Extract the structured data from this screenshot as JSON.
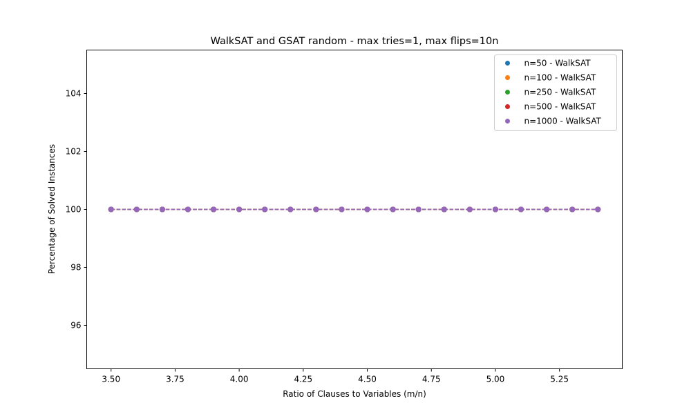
{
  "chart_data": {
    "type": "scatter",
    "title": "WalkSAT and GSAT random - max tries=1, max flips=10n",
    "xlabel": "Ratio of Clauses to Variables (m/n)",
    "ylabel": "Percentage of Solved Instances",
    "xlim": [
      3.405,
      5.495
    ],
    "ylim": [
      94.5,
      105.5
    ],
    "x_ticks": [
      "3.50",
      "3.75",
      "4.00",
      "4.25",
      "4.50",
      "4.75",
      "5.00",
      "5.25"
    ],
    "y_ticks": [
      "96",
      "98",
      "100",
      "102",
      "104"
    ],
    "x": [
      3.5,
      3.6,
      3.7,
      3.8,
      3.9,
      4.0,
      4.1,
      4.2,
      4.3,
      4.4,
      4.5,
      4.6,
      4.7,
      4.8,
      4.9,
      5.0,
      5.1,
      5.2,
      5.3,
      5.4
    ],
    "line_style": "dashed",
    "legend_position": "top-right",
    "grid": false,
    "series": [
      {
        "name": "n=50 - WalkSAT",
        "color": "#1f77b4",
        "values": [
          100,
          100,
          100,
          100,
          100,
          100,
          100,
          100,
          100,
          100,
          100,
          100,
          100,
          100,
          100,
          100,
          100,
          100,
          100,
          100
        ]
      },
      {
        "name": "n=100 - WalkSAT",
        "color": "#ff7f0e",
        "values": [
          100,
          100,
          100,
          100,
          100,
          100,
          100,
          100,
          100,
          100,
          100,
          100,
          100,
          100,
          100,
          100,
          100,
          100,
          100,
          100
        ]
      },
      {
        "name": "n=250 - WalkSAT",
        "color": "#2ca02c",
        "values": [
          100,
          100,
          100,
          100,
          100,
          100,
          100,
          100,
          100,
          100,
          100,
          100,
          100,
          100,
          100,
          100,
          100,
          100,
          100,
          100
        ]
      },
      {
        "name": "n=500 - WalkSAT",
        "color": "#d62728",
        "values": [
          100,
          100,
          100,
          100,
          100,
          100,
          100,
          100,
          100,
          100,
          100,
          100,
          100,
          100,
          100,
          100,
          100,
          100,
          100,
          100
        ]
      },
      {
        "name": "n=1000 - WalkSAT",
        "color": "#9467bd",
        "values": [
          100,
          100,
          100,
          100,
          100,
          100,
          100,
          100,
          100,
          100,
          100,
          100,
          100,
          100,
          100,
          100,
          100,
          100,
          100,
          100
        ]
      }
    ]
  }
}
